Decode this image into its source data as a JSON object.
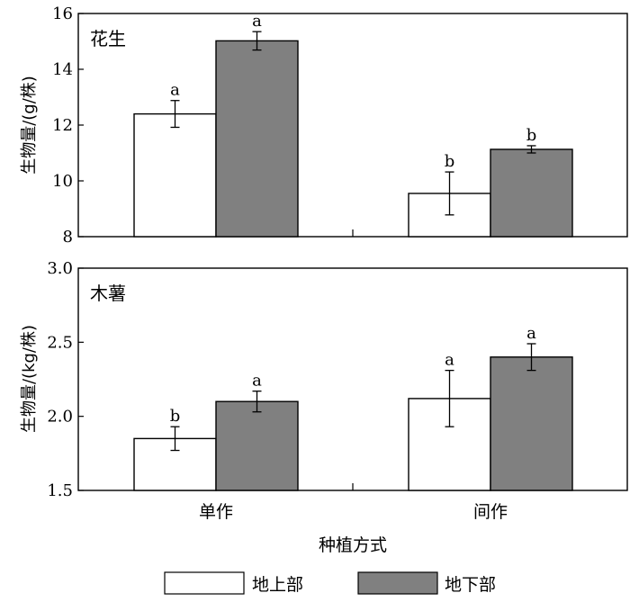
{
  "chart_data": [
    {
      "type": "bar",
      "panel_label": "花生",
      "ylabel": "生物量/(g/株)",
      "ylim": [
        8,
        16
      ],
      "yticks": [
        "8",
        "10",
        "12",
        "14",
        "16"
      ],
      "categories": [
        "单作",
        "间作"
      ],
      "series": [
        {
          "name": "地上部",
          "values": [
            12.4,
            9.55
          ],
          "errors": [
            0.48,
            0.77
          ],
          "letters": [
            "a",
            "b"
          ]
        },
        {
          "name": "地下部",
          "values": [
            15.02,
            11.13
          ],
          "errors": [
            0.33,
            0.13
          ],
          "letters": [
            "a",
            "b"
          ]
        }
      ]
    },
    {
      "type": "bar",
      "panel_label": "木薯",
      "ylabel": "生物量/(kg/株)",
      "ylim": [
        1.5,
        3.0
      ],
      "yticks": [
        "1.5",
        "2.0",
        "2.5",
        "3.0"
      ],
      "categories": [
        "单作",
        "间作"
      ],
      "series": [
        {
          "name": "地上部",
          "values": [
            1.85,
            2.12
          ],
          "errors": [
            0.08,
            0.19
          ],
          "letters": [
            "b",
            "a"
          ]
        },
        {
          "name": "地下部",
          "values": [
            2.1,
            2.4
          ],
          "errors": [
            0.07,
            0.09
          ],
          "letters": [
            "a",
            "a"
          ]
        }
      ]
    }
  ],
  "xlabel": "种植方式",
  "legend": [
    {
      "label": "地上部",
      "color": "#ffffff"
    },
    {
      "label": "地下部",
      "color": "#808080"
    }
  ]
}
